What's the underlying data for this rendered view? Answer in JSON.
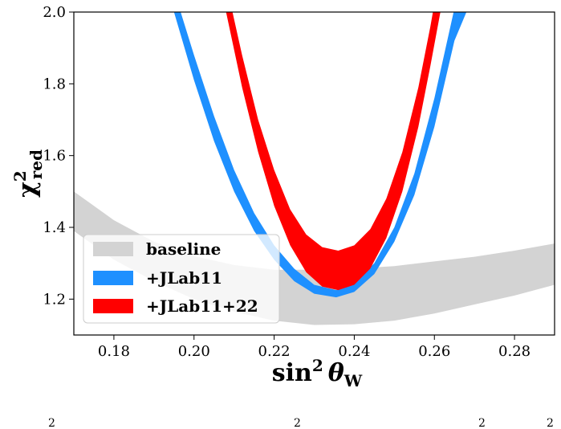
{
  "chart_data": {
    "type": "area",
    "xlabel_main": "sin",
    "xlabel_sup": "2",
    "xlabel_theta": "θ",
    "xlabel_sub": "W",
    "ylabel_main": "χ",
    "ylabel_sup": "2",
    "ylabel_sub": "red",
    "xlim": [
      0.17,
      0.29
    ],
    "ylim": [
      1.1,
      2.0
    ],
    "xticks": [
      0.18,
      0.2,
      0.22,
      0.24,
      0.26,
      0.28
    ],
    "xtick_labels": [
      "0.18",
      "0.20",
      "0.22",
      "0.24",
      "0.26",
      "0.28"
    ],
    "yticks": [
      1.2,
      1.4,
      1.6,
      1.8,
      2.0
    ],
    "ytick_labels": [
      "1.2",
      "1.4",
      "1.6",
      "1.8",
      "2.0"
    ],
    "grid": false,
    "legend_placement": "lower-left",
    "series": [
      {
        "name": "baseline",
        "color": "#d3d3d3",
        "x": [
          0.17,
          0.18,
          0.19,
          0.2,
          0.21,
          0.22,
          0.23,
          0.24,
          0.25,
          0.26,
          0.27,
          0.28,
          0.29
        ],
        "y_low": [
          1.39,
          1.31,
          1.25,
          1.2,
          1.165,
          1.14,
          1.128,
          1.13,
          1.14,
          1.16,
          1.185,
          1.21,
          1.24
        ],
        "y_high": [
          1.5,
          1.42,
          1.36,
          1.32,
          1.295,
          1.282,
          1.282,
          1.285,
          1.292,
          1.305,
          1.318,
          1.335,
          1.355
        ]
      },
      {
        "name": "+JLab11",
        "color": "#1e90ff",
        "x": [
          0.195,
          0.2,
          0.205,
          0.21,
          0.215,
          0.22,
          0.225,
          0.23,
          0.2355,
          0.24,
          0.245,
          0.25,
          0.255,
          0.26,
          0.265,
          0.268
        ],
        "y_low": [
          2.0,
          1.81,
          1.64,
          1.5,
          1.39,
          1.31,
          1.25,
          1.215,
          1.205,
          1.22,
          1.27,
          1.36,
          1.49,
          1.68,
          1.92,
          2.0
        ],
        "y_high": [
          2.06,
          1.88,
          1.71,
          1.56,
          1.44,
          1.35,
          1.285,
          1.24,
          1.225,
          1.245,
          1.3,
          1.4,
          1.55,
          1.76,
          2.01,
          2.1
        ]
      },
      {
        "name": "+JLab11+22",
        "color": "#ff0000",
        "x": [
          0.208,
          0.212,
          0.216,
          0.22,
          0.224,
          0.228,
          0.232,
          0.236,
          0.24,
          0.244,
          0.248,
          0.252,
          0.256,
          0.259,
          0.262
        ],
        "y_low": [
          2.0,
          1.79,
          1.61,
          1.46,
          1.35,
          1.275,
          1.235,
          1.225,
          1.24,
          1.285,
          1.37,
          1.5,
          1.68,
          1.85,
          2.03
        ],
        "y_high": [
          2.08,
          1.88,
          1.7,
          1.56,
          1.45,
          1.38,
          1.345,
          1.335,
          1.35,
          1.395,
          1.48,
          1.61,
          1.79,
          1.96,
          2.15
        ]
      }
    ],
    "cut_text": [
      "2",
      "2",
      "2",
      "2"
    ]
  }
}
